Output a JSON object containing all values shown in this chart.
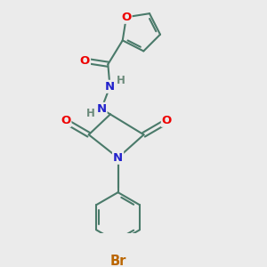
{
  "background_color": "#ebebeb",
  "bond_color": "#4a7a6a",
  "bond_width": 1.5,
  "atom_colors": {
    "O": "#ee0000",
    "N": "#2222cc",
    "Br": "#bb6600",
    "H_gray": "#6a8a7a"
  },
  "font_size_main": 9.5,
  "font_size_br": 10.5,
  "figsize": [
    3.0,
    3.0
  ],
  "dpi": 100,
  "xlim": [
    0,
    6
  ],
  "ylim": [
    0,
    6
  ]
}
